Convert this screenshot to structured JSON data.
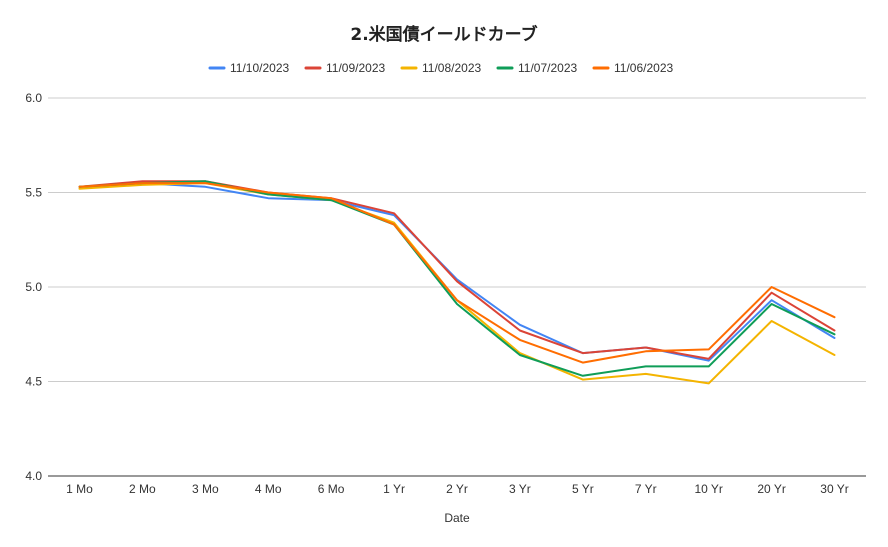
{
  "chart_data": {
    "type": "line",
    "title": "2.米国債イールドカーブ",
    "xlabel": "Date",
    "ylabel": "",
    "ylim": [
      4.0,
      6.0
    ],
    "yticks": [
      "4.0",
      "4.5",
      "5.0",
      "5.5",
      "6.0"
    ],
    "yticks_values": [
      4.0,
      4.5,
      5.0,
      5.5,
      6.0
    ],
    "grid": true,
    "legend_position": "top",
    "categories": [
      "1 Mo",
      "2 Mo",
      "3 Mo",
      "4 Mo",
      "6 Mo",
      "1 Yr",
      "2 Yr",
      "3 Yr",
      "5 Yr",
      "7 Yr",
      "10 Yr",
      "20 Yr",
      "30 Yr"
    ],
    "series": [
      {
        "name": "11/10/2023",
        "color": "#4285f4",
        "values": [
          5.53,
          5.55,
          5.53,
          5.47,
          5.46,
          5.38,
          5.04,
          4.8,
          4.65,
          4.68,
          4.61,
          4.93,
          4.73
        ]
      },
      {
        "name": "11/09/2023",
        "color": "#db4437",
        "values": [
          5.53,
          5.56,
          5.56,
          5.5,
          5.47,
          5.39,
          5.03,
          4.77,
          4.65,
          4.68,
          4.62,
          4.97,
          4.77
        ]
      },
      {
        "name": "11/08/2023",
        "color": "#f4b400",
        "values": [
          5.52,
          5.54,
          5.55,
          5.49,
          5.46,
          5.34,
          4.93,
          4.65,
          4.51,
          4.54,
          4.49,
          4.82,
          4.64
        ]
      },
      {
        "name": "11/07/2023",
        "color": "#0f9d58",
        "values": [
          5.53,
          5.55,
          5.56,
          5.49,
          5.46,
          5.33,
          4.91,
          4.64,
          4.53,
          4.58,
          4.58,
          4.91,
          4.75
        ]
      },
      {
        "name": "11/06/2023",
        "color": "#ff6d01",
        "values": [
          5.53,
          5.55,
          5.55,
          5.5,
          5.47,
          5.33,
          4.93,
          4.72,
          4.6,
          4.66,
          4.67,
          5.0,
          4.84
        ]
      }
    ]
  }
}
